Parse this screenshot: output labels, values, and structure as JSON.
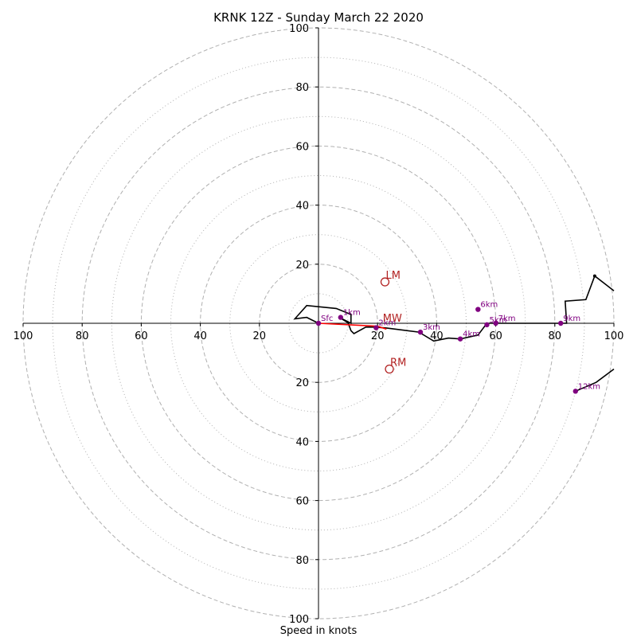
{
  "chart_data": {
    "type": "hodograph",
    "title": "KRNK 12Z - Sunday March 22 2020",
    "xlabel": "Speed in knots",
    "range": [
      -100,
      100
    ],
    "major_rings": [
      20,
      40,
      60,
      80,
      100
    ],
    "minor_rings": [
      10,
      30,
      50,
      70,
      90
    ],
    "tick_labels": [
      "100",
      "80",
      "60",
      "40",
      "20",
      "0"
    ],
    "colors": {
      "profile": "#000000",
      "mean_wind": "#ff0000",
      "height": "#800080",
      "motion": "#b22222",
      "grid": "#b0b0b0"
    },
    "profile": [
      [
        0,
        0
      ],
      [
        -4,
        2
      ],
      [
        -8,
        1.5
      ],
      [
        -4,
        6
      ],
      [
        6,
        5
      ],
      [
        11,
        3
      ],
      [
        11,
        0
      ],
      [
        7,
        2
      ],
      [
        10,
        0.2
      ],
      [
        11,
        -2.5
      ],
      [
        12,
        -3.5
      ],
      [
        16,
        -1.3
      ],
      [
        19,
        -1.3
      ],
      [
        23,
        -1.6
      ],
      [
        34,
        -3
      ],
      [
        39,
        -6
      ],
      [
        44,
        -5
      ],
      [
        48,
        -5.3
      ],
      [
        54,
        -4
      ],
      [
        57,
        0
      ],
      [
        59.5,
        0
      ],
      [
        82,
        0
      ],
      [
        84,
        0
      ],
      [
        83.5,
        7.5
      ],
      [
        90.5,
        8
      ],
      [
        93.5,
        16
      ],
      [
        100,
        11
      ]
    ],
    "profile_tail": [
      [
        100,
        -15.5
      ],
      [
        94,
        -20
      ],
      [
        87,
        -23
      ]
    ],
    "profile_arrow": [
      93.5,
      16
    ],
    "mean_wind": [
      [
        0,
        0
      ],
      [
        20,
        -1
      ],
      [
        23,
        -2
      ]
    ],
    "heights": [
      {
        "label": "Sfc",
        "u": 0,
        "v": 0
      },
      {
        "label": "1km",
        "u": 7.5,
        "v": 2
      },
      {
        "label": "2km",
        "u": 19.5,
        "v": -1.5
      },
      {
        "label": "3km",
        "u": 34.5,
        "v": -3
      },
      {
        "label": "4km",
        "u": 48,
        "v": -5.3
      },
      {
        "label": "5km",
        "u": 57,
        "v": -0.5
      },
      {
        "label": "6km",
        "u": 54,
        "v": 4.7
      },
      {
        "label": "7km",
        "u": 60,
        "v": 0
      },
      {
        "label": "9km",
        "u": 82,
        "v": 0
      },
      {
        "label": "12km",
        "u": 87,
        "v": -23
      }
    ],
    "motions": [
      {
        "label": "LM",
        "u": 22.5,
        "v": 14
      },
      {
        "label": "MW",
        "u": 21.5,
        "v": -0.5
      },
      {
        "label": "RM",
        "u": 24,
        "v": -15.5
      }
    ]
  }
}
